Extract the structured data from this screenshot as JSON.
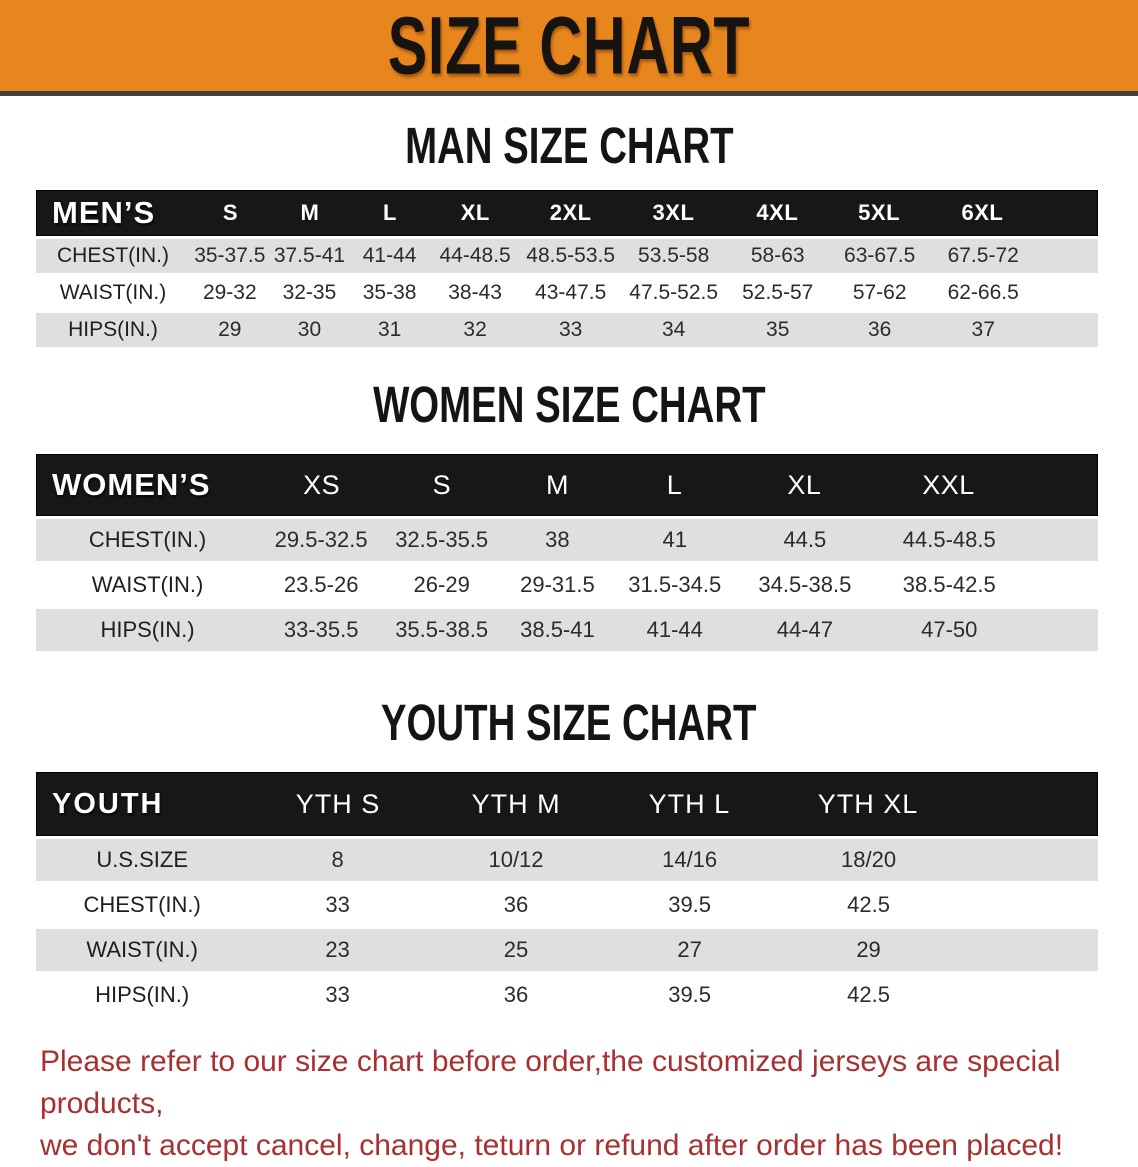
{
  "banner": {
    "title": "SIZE CHART",
    "bg_color": "#E8861E"
  },
  "colors": {
    "header_bar": "#171717",
    "stripe_row": "#DFDFDF"
  },
  "men": {
    "heading": "MAN SIZE CHART",
    "label": "MEN’S",
    "sizes": [
      "S",
      "M",
      "L",
      "XL",
      "2XL",
      "3XL",
      "4XL",
      "5XL",
      "6XL"
    ],
    "rows": [
      {
        "label": "CHEST(IN.)",
        "values": [
          "35-37.5",
          "37.5-41",
          "41-44",
          "44-48.5",
          "48.5-53.5",
          "53.5-58",
          "58-63",
          "63-67.5",
          "67.5-72"
        ]
      },
      {
        "label": "WAIST(IN.)",
        "values": [
          "29-32",
          "32-35",
          "35-38",
          "38-43",
          "43-47.5",
          "47.5-52.5",
          "52.5-57",
          "57-62",
          "62-66.5"
        ]
      },
      {
        "label": "HIPS(IN.)",
        "values": [
          "29",
          "30",
          "31",
          "32",
          "33",
          "34",
          "35",
          "36",
          "37"
        ]
      }
    ]
  },
  "women": {
    "heading": "WOMEN SIZE CHART",
    "label": "WOMEN’S",
    "sizes": [
      "XS",
      "S",
      "M",
      "L",
      "XL",
      "XXL"
    ],
    "rows": [
      {
        "label": "CHEST(IN.)",
        "values": [
          "29.5-32.5",
          "32.5-35.5",
          "38",
          "41",
          "44.5",
          "44.5-48.5"
        ]
      },
      {
        "label": "WAIST(IN.)",
        "values": [
          "23.5-26",
          "26-29",
          "29-31.5",
          "31.5-34.5",
          "34.5-38.5",
          "38.5-42.5"
        ]
      },
      {
        "label": "HIPS(IN.)",
        "values": [
          "33-35.5",
          "35.5-38.5",
          "38.5-41",
          "41-44",
          "44-47",
          "47-50"
        ]
      }
    ]
  },
  "youth": {
    "heading": "YOUTH SIZE CHART",
    "label": "YOUTH",
    "sizes": [
      "YTH S",
      "YTH M",
      "YTH L",
      "YTH XL"
    ],
    "rows": [
      {
        "label": "U.S.SIZE",
        "values": [
          "8",
          "10/12",
          "14/16",
          "18/20"
        ]
      },
      {
        "label": "CHEST(IN.)",
        "values": [
          "33",
          "36",
          "39.5",
          "42.5"
        ]
      },
      {
        "label": "WAIST(IN.)",
        "values": [
          "23",
          "25",
          "27",
          "29"
        ]
      },
      {
        "label": "HIPS(IN.)",
        "values": [
          "33",
          "36",
          "39.5",
          "42.5"
        ]
      }
    ]
  },
  "note": {
    "line1": "Please refer to our size chart before order,the customized jerseys are special products,",
    "line2": "we don't accept cancel, change, teturn or refund after order has been placed!",
    "color": "#A93030"
  }
}
